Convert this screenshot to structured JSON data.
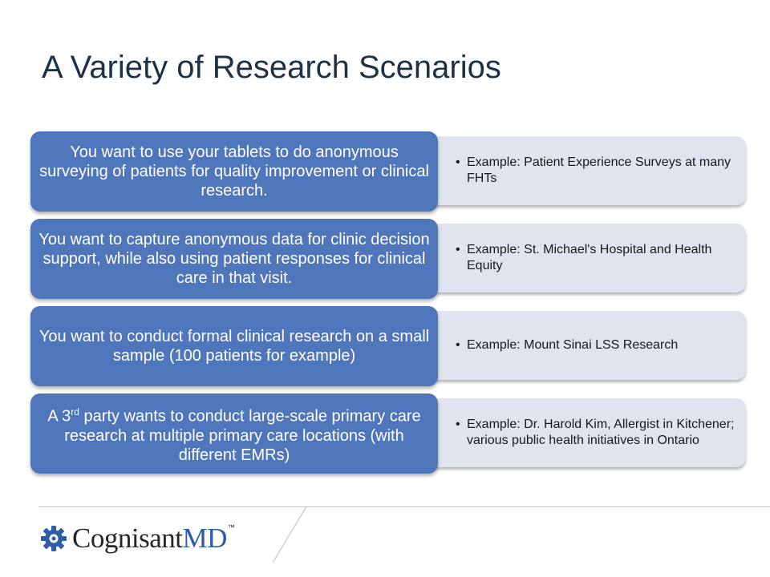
{
  "slide": {
    "title": "A Variety of Research Scenarios"
  },
  "scenarios": [
    {
      "text": "You want to use your tablets to do anonymous surveying of patients for quality improvement or clinical research.",
      "examples": [
        "Example: Patient Experience Surveys at many FHTs"
      ]
    },
    {
      "text": "You want to capture anonymous data for clinic decision support, while also using patient responses for clinical care in that visit.",
      "examples": [
        "Example: St. Michael's Hospital and Health Equity"
      ]
    },
    {
      "text": "You want to conduct formal clinical research on a small sample (100 patients for example)",
      "examples": [
        "Example: Mount Sinai LSS Research"
      ]
    },
    {
      "text_before": "A 3",
      "text_sup": "rd",
      "text_after": " party wants to conduct large-scale primary care research at multiple primary care locations (with different EMRs)",
      "examples": [
        "Example: Dr. Harold Kim, Allergist in Kitchener; various public health initiatives in Ontario"
      ]
    }
  ],
  "bullet_char": "•",
  "logo": {
    "name_part1": "Cognisant",
    "name_part2": "MD",
    "trademark": "™",
    "icon": "gear-icon",
    "colors": {
      "text_dark": "#262626",
      "text_blue": "#2e5da8",
      "gear": "#2e5da8"
    }
  },
  "colors": {
    "title": "#1f3144",
    "scenario_fill": "#4f75bb",
    "example_fill": "#dfe4ef"
  }
}
